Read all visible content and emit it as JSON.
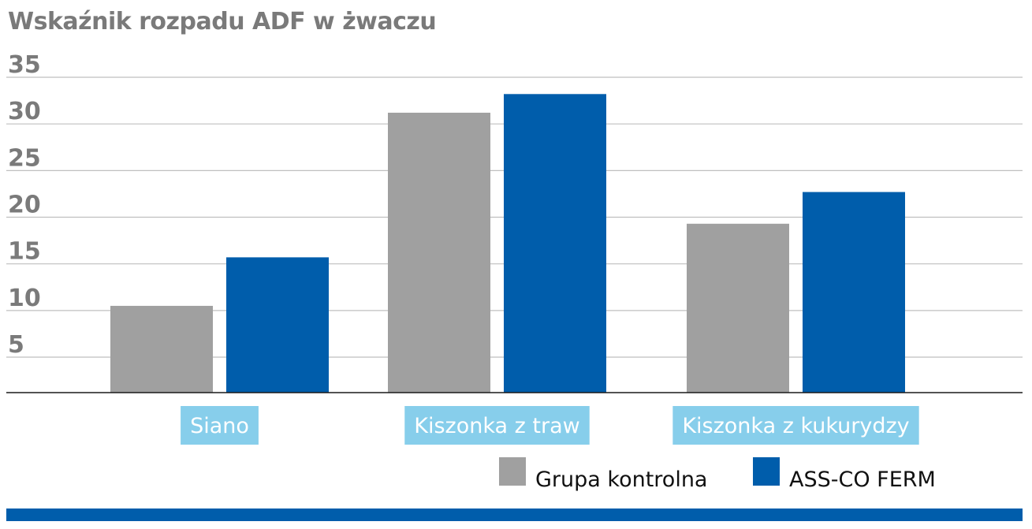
{
  "chart_data": {
    "type": "bar",
    "title": "Wskaźnik rozpadu ADF w żwaczu",
    "xlabel": "",
    "ylabel": "",
    "categories": [
      "Siano",
      "Kiszonka z traw",
      "Kiszonka z kukurydzy"
    ],
    "series": [
      {
        "name": "Grupa kontrolna",
        "values": [
          10.5,
          31.2,
          19.3
        ],
        "color": "#a0a0a0"
      },
      {
        "name": "ASS-CO FERM",
        "values": [
          15.7,
          33.2,
          22.7
        ],
        "color": "#005dab"
      }
    ],
    "ylim": [
      1.2,
      35
    ],
    "yticks": [
      5,
      10,
      15,
      20,
      25,
      30,
      35
    ],
    "grid": true,
    "legend_position": "bottom-right",
    "category_label_bg": "#87ceeb",
    "gridline_color": "#bfbfbf",
    "axis_color": "#1a1a1a",
    "title_color": "#7a7a7a",
    "bottom_bar_color": "#005dab"
  }
}
